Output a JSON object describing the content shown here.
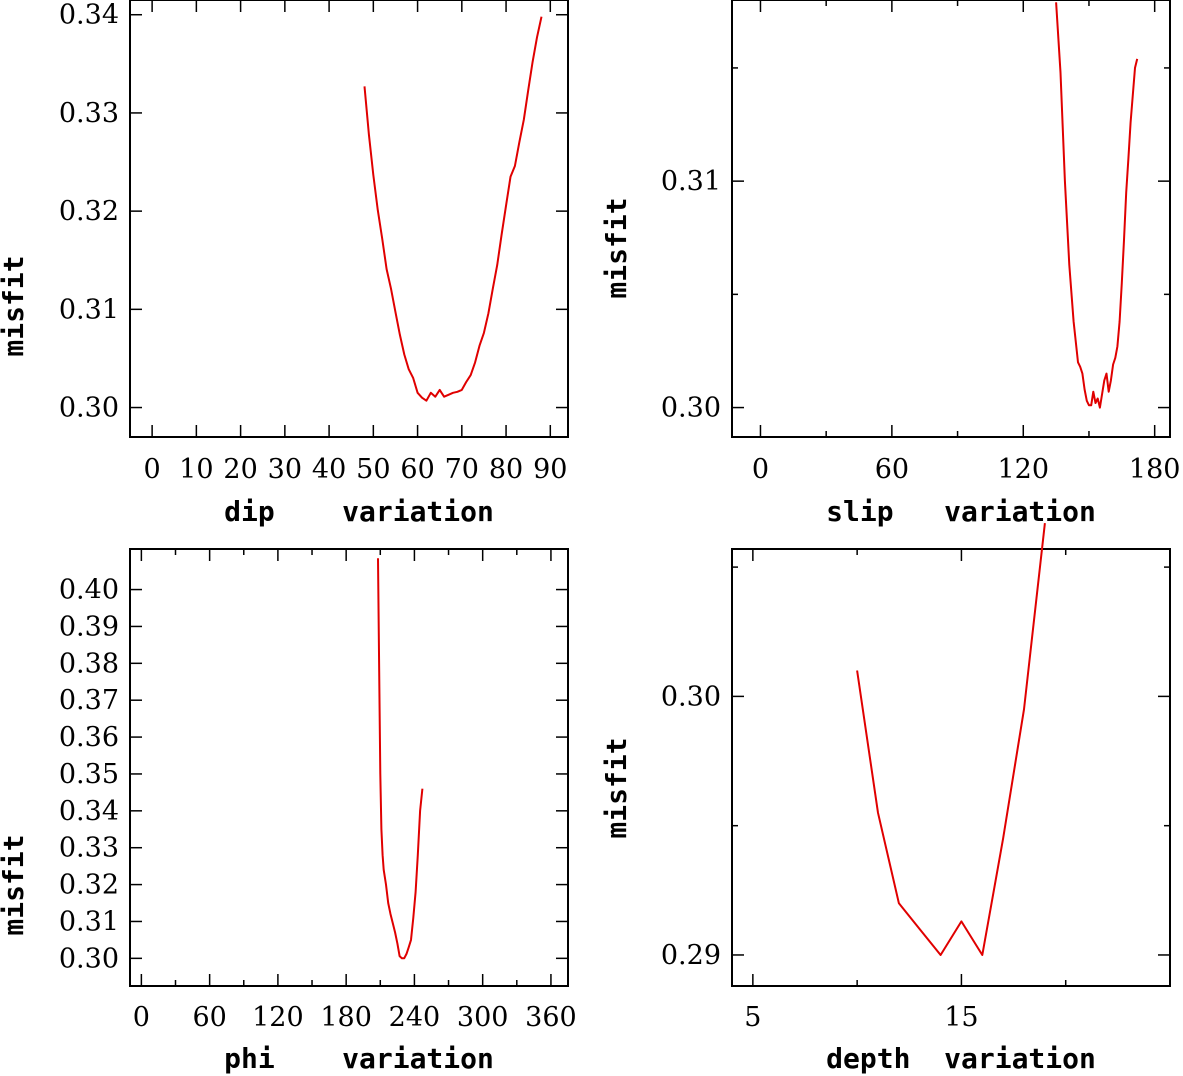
{
  "chart_data": [
    {
      "type": "line",
      "xlabel": "dip    variation",
      "ylabel": "misfit",
      "xlim": [
        -5,
        94
      ],
      "ylim": [
        0.297,
        0.3415
      ],
      "xticks": [
        0,
        10,
        20,
        30,
        40,
        50,
        60,
        70,
        80,
        90
      ],
      "xtick_labels": [
        "0",
        "10",
        "20",
        "30",
        "40",
        "50",
        "60",
        "70",
        "80",
        "90"
      ],
      "yticks": [
        0.3,
        0.31,
        0.32,
        0.33,
        0.34
      ],
      "ytick_labels": [
        "0.30",
        "0.31",
        "0.32",
        "0.33",
        "0.34"
      ],
      "color": "#e00000",
      "x": [
        48,
        49,
        50,
        51,
        52,
        53,
        54,
        55,
        56,
        57,
        58,
        59,
        60,
        61,
        62,
        63,
        64,
        65,
        66,
        67,
        68,
        69,
        70,
        71,
        72,
        73,
        74,
        75,
        76,
        77,
        78,
        79,
        80,
        81,
        82,
        83,
        84,
        85,
        86,
        87,
        88
      ],
      "y": [
        0.3327,
        0.3278,
        0.3237,
        0.3201,
        0.3172,
        0.3141,
        0.3121,
        0.3097,
        0.3074,
        0.3054,
        0.3039,
        0.303,
        0.3015,
        0.301,
        0.3007,
        0.3015,
        0.3011,
        0.3018,
        0.3011,
        0.3013,
        0.3015,
        0.3016,
        0.3018,
        0.3026,
        0.3033,
        0.3046,
        0.3063,
        0.3076,
        0.3096,
        0.3121,
        0.3145,
        0.3176,
        0.3206,
        0.3235,
        0.3246,
        0.327,
        0.3293,
        0.3323,
        0.3352,
        0.3377,
        0.3398
      ]
    },
    {
      "type": "line",
      "xlabel": "slip   variation",
      "ylabel": "misfit",
      "xlim": [
        -13,
        187
      ],
      "ylim": [
        0.2987,
        0.318
      ],
      "xticks": [
        0,
        60,
        120,
        180
      ],
      "xtick_labels": [
        "0",
        "60",
        "120",
        "180"
      ],
      "minor_xticks": [
        30,
        90,
        150
      ],
      "yticks": [
        0.3,
        0.31
      ],
      "ytick_labels": [
        "0.30",
        "0.31"
      ],
      "minor_yticks": [
        0.305,
        0.315
      ],
      "color": "#e00000",
      "x": [
        135,
        137,
        139,
        141,
        143,
        145,
        146,
        147,
        148,
        149,
        150,
        151,
        152,
        153,
        154,
        155,
        156,
        157,
        158,
        159,
        160,
        161,
        162,
        163,
        164,
        165,
        166,
        167,
        168,
        169,
        170,
        171,
        172
      ],
      "y": [
        0.3179,
        0.3148,
        0.31,
        0.3063,
        0.3038,
        0.302,
        0.3018,
        0.3015,
        0.3008,
        0.3003,
        0.3001,
        0.3001,
        0.3007,
        0.3002,
        0.3004,
        0.3,
        0.3006,
        0.3012,
        0.3015,
        0.3007,
        0.3012,
        0.3019,
        0.3022,
        0.3027,
        0.3038,
        0.3055,
        0.3074,
        0.3095,
        0.311,
        0.3126,
        0.3138,
        0.315,
        0.3154
      ]
    },
    {
      "type": "line",
      "xlabel": "phi    variation",
      "ylabel": "misfit",
      "xlim": [
        -10,
        375
      ],
      "ylim": [
        0.2925,
        0.411
      ],
      "xticks": [
        0,
        60,
        120,
        180,
        240,
        300,
        360
      ],
      "xtick_labels": [
        "0",
        "60",
        "120",
        "180",
        "240",
        "300",
        "360"
      ],
      "minor_xticks": [
        30,
        90,
        150,
        210,
        270,
        330
      ],
      "yticks": [
        0.3,
        0.31,
        0.32,
        0.33,
        0.34,
        0.35,
        0.36,
        0.37,
        0.38,
        0.39,
        0.4
      ],
      "ytick_labels": [
        "0.30",
        "0.31",
        "0.32",
        "0.33",
        "0.34",
        "0.35",
        "0.36",
        "0.37",
        "0.38",
        "0.39",
        "0.40"
      ],
      "color": "#e00000",
      "x": [
        208,
        209,
        210,
        211,
        212,
        213,
        215,
        217,
        219,
        221,
        223,
        225,
        227,
        229,
        231,
        233,
        235,
        237,
        239,
        241,
        243,
        245,
        247
      ],
      "y": [
        0.4085,
        0.38,
        0.35,
        0.335,
        0.328,
        0.324,
        0.32,
        0.315,
        0.312,
        0.3095,
        0.307,
        0.304,
        0.3006,
        0.3,
        0.3,
        0.3012,
        0.303,
        0.305,
        0.311,
        0.318,
        0.328,
        0.34,
        0.346
      ]
    },
    {
      "type": "line",
      "xlabel": "depth  variation",
      "ylabel": "misfit",
      "xlim": [
        4,
        25
      ],
      "ylim": [
        0.2888,
        0.3057
      ],
      "xticks": [
        5,
        15
      ],
      "xtick_labels": [
        "5",
        "15"
      ],
      "minor_xticks": [
        10,
        20
      ],
      "yticks": [
        0.29,
        0.3
      ],
      "ytick_labels": [
        "0.29",
        "0.30"
      ],
      "minor_yticks": [
        0.295,
        0.305
      ],
      "color": "#e00000",
      "x": [
        10,
        11,
        12,
        13,
        14,
        15,
        16,
        17,
        18,
        19
      ],
      "y": [
        0.301,
        0.2955,
        0.292,
        0.291,
        0.29,
        0.2913,
        0.29,
        0.2945,
        0.2995,
        0.3067
      ]
    }
  ]
}
